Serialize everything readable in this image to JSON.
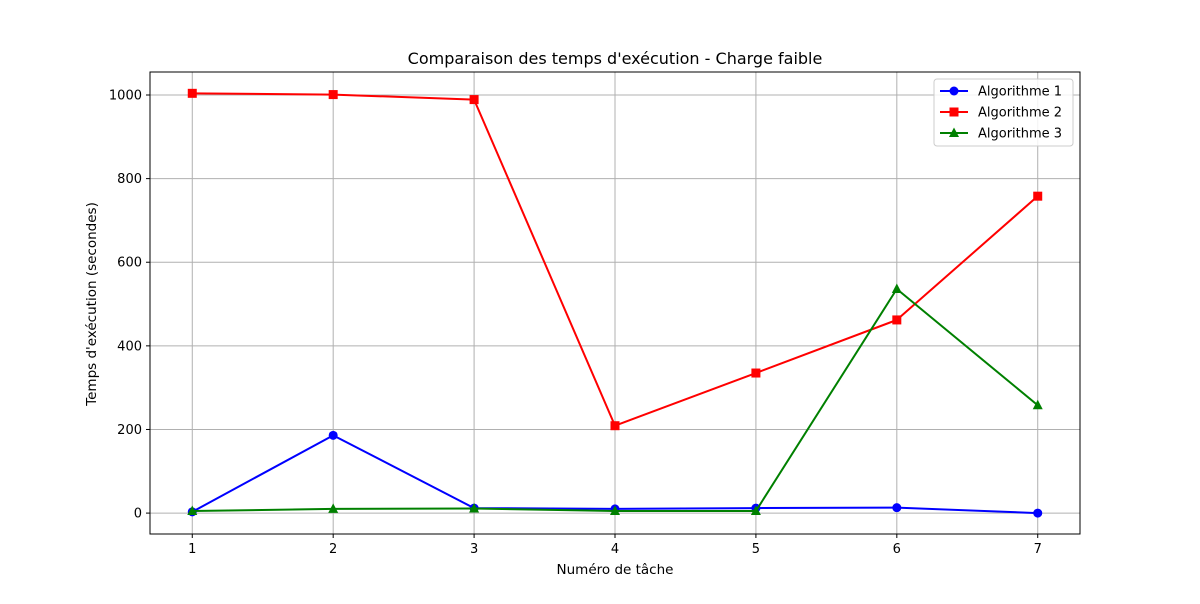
{
  "chart_data": {
    "type": "line",
    "title": "Comparaison des temps d'exécution - Charge faible",
    "xlabel": "Numéro de tâche",
    "ylabel": "Temps d'exécution (secondes)",
    "x": [
      1,
      2,
      3,
      4,
      5,
      6,
      7
    ],
    "xlim": [
      0.7,
      7.3
    ],
    "ylim": [
      -50,
      1055
    ],
    "xticks": [
      1,
      2,
      3,
      4,
      5,
      6,
      7
    ],
    "yticks": [
      0,
      200,
      400,
      600,
      800,
      1000
    ],
    "grid": true,
    "legend_position": "top-right",
    "series": [
      {
        "name": "Algorithme 1",
        "color": "#0000ff",
        "marker": "circle",
        "values": [
          3,
          186,
          12,
          10,
          12,
          13,
          0
        ]
      },
      {
        "name": "Algorithme 2",
        "color": "#ff0000",
        "marker": "square",
        "values": [
          1004,
          1001,
          989,
          209,
          335,
          462,
          758
        ]
      },
      {
        "name": "Algorithme 3",
        "color": "#008000",
        "marker": "triangle",
        "values": [
          5,
          10,
          11,
          5,
          5,
          536,
          258
        ]
      }
    ]
  }
}
